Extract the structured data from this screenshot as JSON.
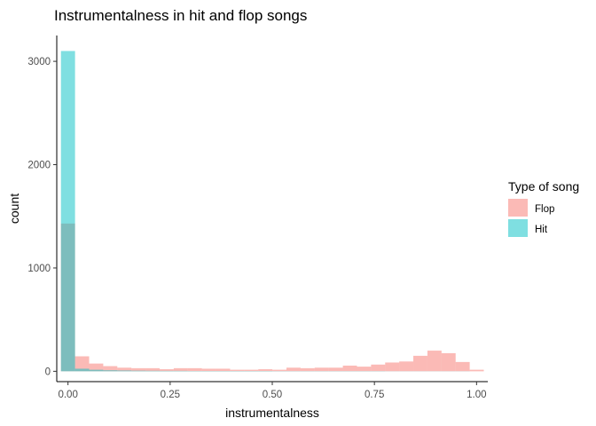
{
  "chart_data": {
    "type": "bar",
    "title": "Instrumentalness in hit and flop songs",
    "xlabel": "instrumentalness",
    "ylabel": "count",
    "xlim": [
      -0.0275,
      1.0275
    ],
    "ylim": [
      -100,
      3250
    ],
    "x_ticks": [
      0,
      0.25,
      0.5,
      0.75,
      1
    ],
    "x_tick_labels": [
      "0.00",
      "0.25",
      "0.50",
      "0.75",
      "1.00"
    ],
    "y_ticks": [
      0,
      1000,
      2000,
      3000
    ],
    "y_tick_labels": [
      "0",
      "1000",
      "2000",
      "3000"
    ],
    "bin_width": 0.0345,
    "bin_centers": [
      0,
      0.0345,
      0.069,
      0.1035,
      0.138,
      0.1725,
      0.207,
      0.2415,
      0.276,
      0.3105,
      0.345,
      0.3795,
      0.414,
      0.4485,
      0.483,
      0.5175,
      0.552,
      0.5865,
      0.621,
      0.6555,
      0.69,
      0.7245,
      0.759,
      0.7935,
      0.828,
      0.8625,
      0.897,
      0.9315,
      0.966,
      1.0005
    ],
    "grid": false,
    "legend_position": "right",
    "legend_title": "Type of song",
    "series": [
      {
        "name": "Flop",
        "color": "#F8766D",
        "values": [
          1430,
          145,
          75,
          50,
          35,
          30,
          30,
          20,
          30,
          30,
          25,
          25,
          15,
          15,
          20,
          15,
          35,
          30,
          35,
          35,
          55,
          45,
          65,
          85,
          95,
          150,
          200,
          175,
          90,
          15
        ]
      },
      {
        "name": "Hit",
        "color": "#00BFC4",
        "values": [
          3100,
          25,
          15,
          10,
          8,
          6,
          5,
          4,
          4,
          3,
          3,
          3,
          3,
          3,
          3,
          2,
          2,
          2,
          2,
          2,
          2,
          2,
          2,
          1,
          1,
          1,
          1,
          1,
          1,
          0
        ]
      }
    ]
  }
}
